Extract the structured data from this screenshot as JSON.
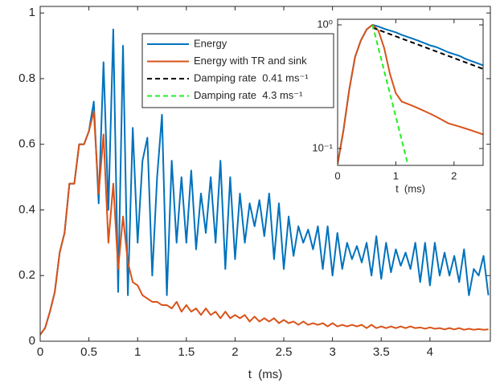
{
  "chart_data": [
    {
      "type": "line",
      "xlabel": "t  (ms)",
      "x": [
        0,
        0.05,
        0.1,
        0.15,
        0.2,
        0.25,
        0.3,
        0.35,
        0.4,
        0.45,
        0.5,
        0.55,
        0.6,
        0.65,
        0.7,
        0.75,
        0.8,
        0.85,
        0.9,
        0.95,
        1.0,
        1.05,
        1.1,
        1.15,
        1.2,
        1.25,
        1.3,
        1.35,
        1.4,
        1.45,
        1.5,
        1.55,
        1.6,
        1.65,
        1.7,
        1.75,
        1.8,
        1.85,
        1.9,
        1.95,
        2.0,
        2.05,
        2.1,
        2.15,
        2.2,
        2.25,
        2.3,
        2.35,
        2.4,
        2.45,
        2.5,
        2.55,
        2.6,
        2.65,
        2.7,
        2.75,
        2.8,
        2.85,
        2.9,
        2.95,
        3.0,
        3.05,
        3.1,
        3.15,
        3.2,
        3.25,
        3.3,
        3.35,
        3.4,
        3.45,
        3.5,
        3.55,
        3.6,
        3.65,
        3.7,
        3.75,
        3.8,
        3.85,
        3.9,
        3.95,
        4.0,
        4.05,
        4.1,
        4.15,
        4.2,
        4.25,
        4.3,
        4.35,
        4.4,
        4.45,
        4.5,
        4.55,
        4.6
      ],
      "series": [
        {
          "name": "Energy",
          "color": "#0072bd",
          "values": [
            0.02,
            0.04,
            0.09,
            0.15,
            0.27,
            0.33,
            0.48,
            0.48,
            0.6,
            0.6,
            0.64,
            0.73,
            0.42,
            0.85,
            0.4,
            0.95,
            0.15,
            0.9,
            0.14,
            0.65,
            0.3,
            0.55,
            0.62,
            0.2,
            0.5,
            0.69,
            0.14,
            0.55,
            0.3,
            0.5,
            0.3,
            0.52,
            0.28,
            0.45,
            0.33,
            0.5,
            0.3,
            0.55,
            0.22,
            0.5,
            0.25,
            0.45,
            0.3,
            0.42,
            0.35,
            0.43,
            0.32,
            0.45,
            0.25,
            0.42,
            0.22,
            0.38,
            0.26,
            0.35,
            0.3,
            0.34,
            0.28,
            0.35,
            0.22,
            0.35,
            0.2,
            0.33,
            0.22,
            0.3,
            0.25,
            0.29,
            0.24,
            0.3,
            0.2,
            0.32,
            0.19,
            0.3,
            0.21,
            0.28,
            0.23,
            0.27,
            0.22,
            0.3,
            0.18,
            0.3,
            0.17,
            0.3,
            0.2,
            0.27,
            0.2,
            0.26,
            0.18,
            0.28,
            0.14,
            0.22,
            0.2,
            0.26,
            0.14
          ]
        },
        {
          "name": "Energy with TR and sink",
          "color": "#d95319",
          "values": [
            0.02,
            0.04,
            0.09,
            0.15,
            0.27,
            0.33,
            0.48,
            0.48,
            0.6,
            0.6,
            0.64,
            0.7,
            0.45,
            0.63,
            0.3,
            0.48,
            0.22,
            0.38,
            0.24,
            0.18,
            0.17,
            0.14,
            0.13,
            0.12,
            0.12,
            0.11,
            0.11,
            0.1,
            0.12,
            0.09,
            0.11,
            0.09,
            0.1,
            0.08,
            0.1,
            0.08,
            0.09,
            0.07,
            0.09,
            0.07,
            0.08,
            0.07,
            0.08,
            0.06,
            0.075,
            0.06,
            0.07,
            0.06,
            0.07,
            0.055,
            0.065,
            0.055,
            0.06,
            0.05,
            0.06,
            0.05,
            0.055,
            0.05,
            0.055,
            0.045,
            0.055,
            0.045,
            0.05,
            0.045,
            0.05,
            0.045,
            0.05,
            0.04,
            0.05,
            0.04,
            0.045,
            0.04,
            0.045,
            0.04,
            0.045,
            0.04,
            0.045,
            0.04,
            0.042,
            0.038,
            0.042,
            0.038,
            0.04,
            0.036,
            0.04,
            0.036,
            0.04,
            0.035,
            0.038,
            0.035,
            0.037,
            0.035,
            0.036
          ]
        }
      ],
      "xlim": [
        0,
        4.62
      ],
      "ylim": [
        0,
        1.02
      ],
      "xticks": [
        0,
        0.5,
        1,
        1.5,
        2,
        2.5,
        3,
        3.5,
        4
      ],
      "yticks": [
        0,
        0.2,
        0.4,
        0.6,
        0.8,
        1
      ]
    },
    {
      "type": "line",
      "xlabel": "t  (ms)",
      "log_y": true,
      "series": [
        {
          "color": "#0072bd",
          "x": [
            0,
            0.1,
            0.2,
            0.3,
            0.4,
            0.5,
            0.6,
            0.7,
            0.8,
            0.9,
            1.0,
            1.1,
            1.2,
            1.3,
            1.4,
            1.5,
            1.6,
            1.7,
            1.8,
            1.9,
            2.0,
            2.1,
            2.2,
            2.3,
            2.4,
            2.5
          ],
          "values": [
            0.075,
            0.14,
            0.3,
            0.55,
            0.75,
            0.92,
            1.0,
            0.97,
            0.93,
            0.9,
            0.87,
            0.83,
            0.8,
            0.77,
            0.74,
            0.71,
            0.68,
            0.66,
            0.63,
            0.6,
            0.58,
            0.56,
            0.53,
            0.51,
            0.49,
            0.47
          ]
        },
        {
          "color": "#d95319",
          "x": [
            0,
            0.1,
            0.2,
            0.3,
            0.4,
            0.5,
            0.6,
            0.7,
            0.8,
            0.9,
            1.0,
            1.1,
            1.2,
            1.3,
            1.4,
            1.5,
            1.6,
            1.7,
            1.8,
            1.9,
            2.0,
            2.1,
            2.2,
            2.3,
            2.4,
            2.5
          ],
          "values": [
            0.075,
            0.14,
            0.3,
            0.55,
            0.75,
            0.92,
            1.0,
            0.9,
            0.65,
            0.4,
            0.28,
            0.24,
            0.23,
            0.22,
            0.21,
            0.2,
            0.19,
            0.18,
            0.17,
            0.16,
            0.155,
            0.15,
            0.145,
            0.14,
            0.135,
            0.13
          ]
        },
        {
          "name": "Damping rate  0.41 ms⁻¹",
          "color": "#000000",
          "dashed": true,
          "x": [
            0.6,
            2.5
          ],
          "values": [
            0.95,
            0.44
          ]
        },
        {
          "name": "Damping rate  4.3 ms⁻¹",
          "color": "#22ee22",
          "dashed": true,
          "x": [
            0.6,
            1.3
          ],
          "values": [
            1.0,
            0.05
          ]
        }
      ],
      "xlim": [
        0,
        2.5
      ],
      "ylim": [
        0.073,
        1.11
      ],
      "xticks": [
        0,
        1,
        2
      ],
      "yticks": [
        {
          "value": 1,
          "label": "10⁰"
        },
        {
          "value": 0.1,
          "label": "10⁻¹"
        }
      ]
    }
  ]
}
